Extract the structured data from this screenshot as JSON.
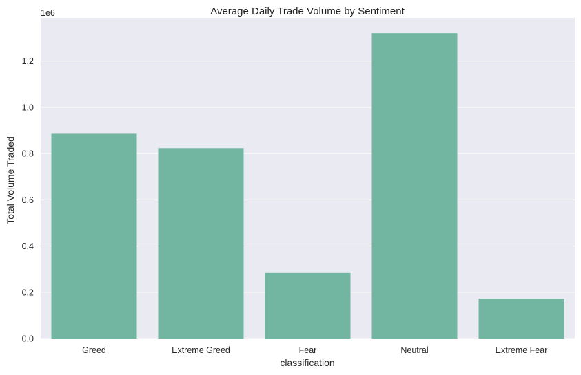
{
  "chart_data": {
    "type": "bar",
    "title": "Average Daily Trade Volume by Sentiment",
    "xlabel": "classification",
    "ylabel": "Total Volume Traded",
    "y_offset_label": "1e6",
    "categories": [
      "Greed",
      "Extreme Greed",
      "Fear",
      "Neutral",
      "Extreme Fear"
    ],
    "values": [
      885000,
      823000,
      283000,
      1320000,
      172000
    ],
    "y_ticks": [
      0.0,
      0.2,
      0.4,
      0.6,
      0.8,
      1.0,
      1.2
    ],
    "y_tick_labels": [
      "0.0",
      "0.2",
      "0.4",
      "0.6",
      "0.8",
      "1.0",
      "1.2"
    ],
    "ylim": [
      0,
      1386000
    ],
    "grid": true,
    "colors": {
      "bar": "#72b6a1",
      "plot_background": "#eaeaf2",
      "grid": "#ffffff"
    }
  }
}
